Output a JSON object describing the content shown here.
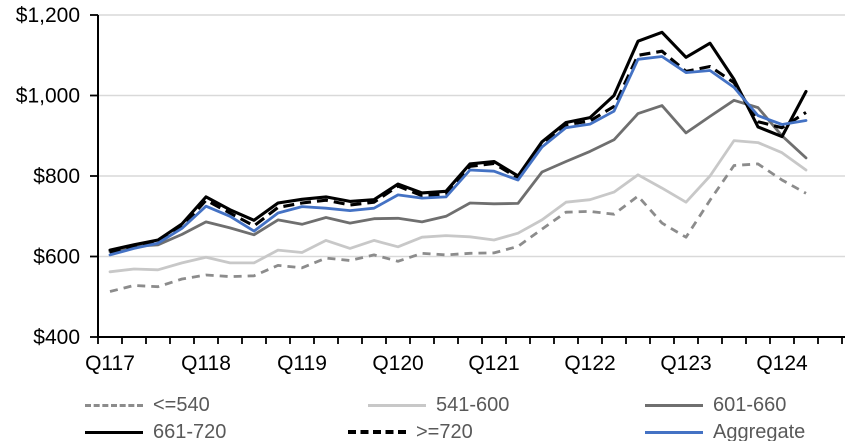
{
  "chart_data": {
    "type": "line",
    "title": "",
    "xlabel": "",
    "ylabel": "",
    "grid": "horizontal",
    "legend_position": "bottom",
    "x_categories": [
      "Q117",
      "Q217",
      "Q317",
      "Q417",
      "Q118",
      "Q218",
      "Q318",
      "Q418",
      "Q119",
      "Q219",
      "Q319",
      "Q419",
      "Q120",
      "Q220",
      "Q320",
      "Q420",
      "Q121",
      "Q221",
      "Q321",
      "Q421",
      "Q122",
      "Q222",
      "Q322",
      "Q422",
      "Q123",
      "Q223",
      "Q323",
      "Q423",
      "Q124",
      "Q224"
    ],
    "x_axis_labels": [
      "Q117",
      "Q118",
      "Q119",
      "Q120",
      "Q121",
      "Q122",
      "Q123",
      "Q124"
    ],
    "y_axis": {
      "min": 400,
      "max": 1200,
      "step": 200,
      "ticks": [
        400,
        600,
        800,
        1000,
        1200
      ],
      "tick_labels": [
        "$400",
        "$600",
        "$800",
        "$1,000",
        "$1,200"
      ],
      "ylim": [
        400,
        1200
      ]
    },
    "series": [
      {
        "id": "lte-540",
        "name": "<=540",
        "color": "#8C8C8C",
        "dash": "dashed",
        "values": [
          513,
          528,
          525,
          544,
          554,
          550,
          552,
          578,
          572,
          596,
          590,
          604,
          588,
          608,
          604,
          608,
          609,
          625,
          668,
          710,
          712,
          705,
          750,
          683,
          648,
          740,
          826,
          830,
          790,
          757
        ]
      },
      {
        "id": "541-600",
        "name": "541-600",
        "color": "#C8C8C8",
        "dash": "solid",
        "values": [
          562,
          569,
          567,
          584,
          598,
          584,
          584,
          616,
          610,
          640,
          620,
          640,
          624,
          648,
          652,
          649,
          641,
          658,
          691,
          735,
          741,
          760,
          803,
          770,
          735,
          800,
          888,
          883,
          858,
          815
        ]
      },
      {
        "id": "601-660",
        "name": "601-660",
        "color": "#6F6F6F",
        "dash": "solid",
        "values": [
          612,
          625,
          629,
          655,
          686,
          671,
          654,
          691,
          680,
          697,
          683,
          694,
          695,
          686,
          700,
          733,
          731,
          732,
          810,
          836,
          861,
          890,
          955,
          975,
          907,
          948,
          988,
          970,
          900,
          845
        ]
      },
      {
        "id": "661-720",
        "name": "661-720",
        "color": "#000000",
        "dash": "solid",
        "values": [
          616,
          629,
          641,
          681,
          748,
          716,
          690,
          733,
          742,
          748,
          737,
          741,
          780,
          758,
          762,
          830,
          836,
          800,
          885,
          933,
          945,
          1000,
          1135,
          1157,
          1095,
          1130,
          1040,
          922,
          898,
          1010
        ]
      },
      {
        "id": "gte-720",
        "name": ">=720",
        "color": "#000000",
        "dash": "dashed",
        "values": [
          609,
          622,
          634,
          673,
          740,
          708,
          676,
          722,
          733,
          740,
          728,
          735,
          775,
          751,
          755,
          824,
          831,
          795,
          878,
          927,
          937,
          973,
          1100,
          1110,
          1060,
          1072,
          1032,
          935,
          920,
          958
        ]
      },
      {
        "id": "aggregate",
        "name": "Aggregate",
        "color": "#4472C4",
        "dash": "solid",
        "values": [
          604,
          620,
          633,
          670,
          725,
          700,
          663,
          708,
          724,
          720,
          714,
          720,
          753,
          745,
          748,
          815,
          812,
          790,
          872,
          920,
          929,
          961,
          1090,
          1097,
          1057,
          1062,
          1020,
          950,
          928,
          938
        ]
      }
    ],
    "colors": {
      "grid": "#D9D9D9",
      "axis": "#000000",
      "legend_text": "#595959"
    }
  },
  "legend": {
    "items": [
      {
        "label": "<=540"
      },
      {
        "label": "541-600"
      },
      {
        "label": "601-660"
      },
      {
        "label": "661-720"
      },
      {
        "label": ">=720"
      },
      {
        "label": "Aggregate"
      }
    ]
  }
}
